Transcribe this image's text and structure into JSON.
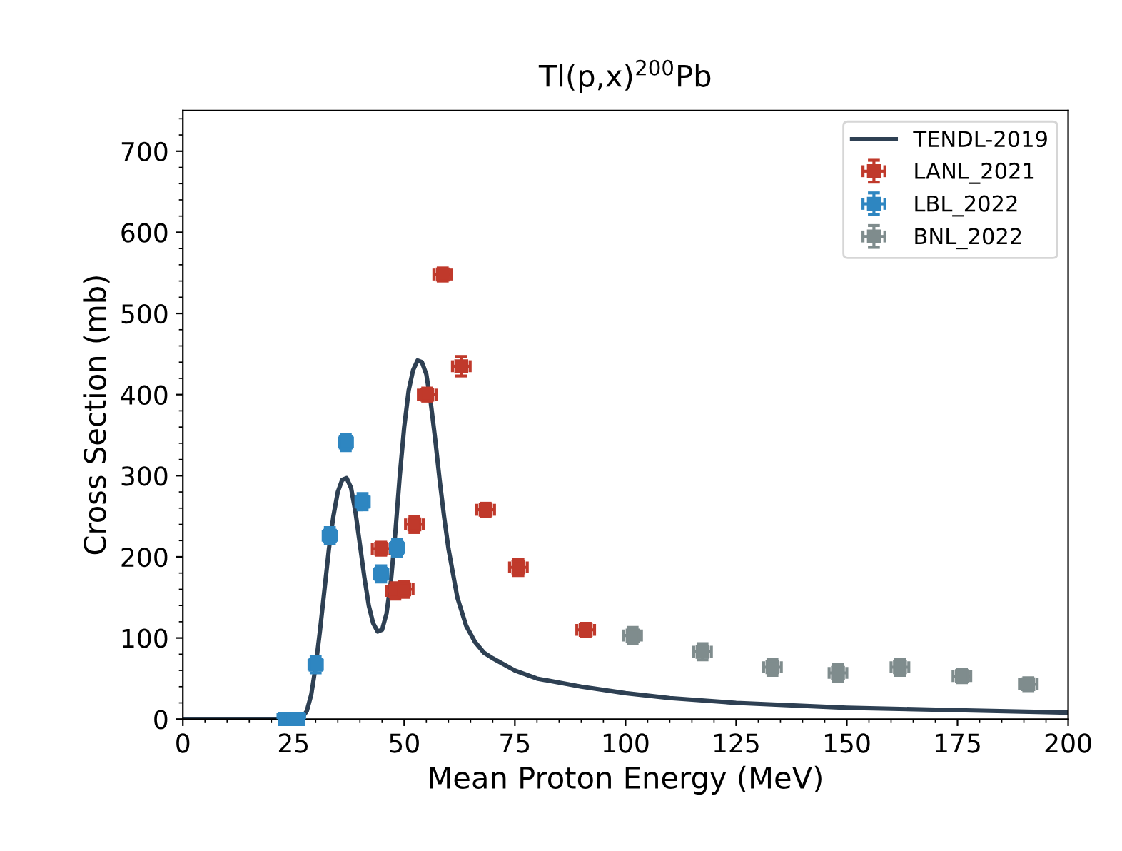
{
  "chart_data": {
    "type": "scatter",
    "title": "Tl(p,x)$^{200}$Pb",
    "xlabel": "Mean Proton Energy (MeV)",
    "ylabel": "Cross Section (mb)",
    "xlim": [
      0,
      200
    ],
    "xticks": [
      0,
      25,
      50,
      75,
      100,
      125,
      150,
      175,
      200
    ],
    "ylim": [
      0,
      750
    ],
    "yticks": [
      0,
      100,
      200,
      300,
      400,
      500,
      600,
      700
    ],
    "legend": "top right",
    "grid": false,
    "marker": "square",
    "series": [
      {
        "name": "TENDL-2019",
        "type": "line",
        "marker": "none",
        "color": "#2e4053",
        "line_style": "solid",
        "x": [
          0,
          25,
          27,
          28,
          29,
          30,
          31,
          32,
          33,
          34,
          35,
          36,
          37,
          38,
          39,
          40,
          41,
          42,
          43,
          44,
          45,
          46,
          47,
          48,
          49,
          50,
          51,
          52,
          53,
          54,
          55,
          56,
          57,
          58,
          59,
          60,
          62,
          64,
          66,
          68,
          70,
          75,
          80,
          90,
          100,
          110,
          125,
          150,
          175,
          200
        ],
        "values": [
          0,
          0,
          2,
          10,
          30,
          65,
          110,
          160,
          210,
          250,
          280,
          295,
          297,
          285,
          255,
          215,
          175,
          140,
          118,
          108,
          110,
          130,
          170,
          230,
          300,
          360,
          405,
          430,
          442,
          440,
          425,
          390,
          345,
          295,
          250,
          210,
          150,
          115,
          95,
          82,
          75,
          60,
          50,
          40,
          32,
          26,
          20,
          14,
          11,
          8
        ]
      },
      {
        "name": "LANL_2021",
        "color": "#c0392b",
        "x": [
          44.8,
          48,
          50,
          52.3,
          55.2,
          58.7,
          62.9,
          68.4,
          75.8,
          91
        ],
        "values": [
          210,
          158,
          160,
          240,
          400,
          548,
          435,
          258,
          187,
          110
        ],
        "errors": [
          8,
          10,
          10,
          10,
          8,
          8,
          12,
          8,
          10,
          8
        ],
        "xerrors": [
          2,
          2,
          2,
          2,
          2,
          2,
          2,
          2,
          2,
          2
        ]
      },
      {
        "name": "LBL_2022",
        "color": "#2e86c1",
        "x": [
          23,
          24.5,
          26,
          30,
          33.2,
          36.8,
          40.6,
          44.8,
          48.4
        ],
        "values": [
          0,
          0,
          0,
          67,
          226,
          341,
          268,
          179,
          211
        ],
        "errors": [
          null,
          null,
          null,
          10,
          10,
          10,
          10,
          10,
          10
        ],
        "xerrors": [
          1.5,
          1.5,
          1.5,
          1.5,
          1.5,
          1.5,
          1.5,
          1.5,
          1.5
        ]
      },
      {
        "name": "BNL_2022",
        "color": "#7f8c8d",
        "x": [
          101.6,
          117.4,
          133.2,
          148,
          162,
          176,
          191
        ],
        "values": [
          103,
          83,
          64,
          57,
          64,
          53,
          43
        ],
        "errors": [
          10,
          10,
          10,
          10,
          10,
          8,
          8
        ],
        "xerrors": [
          2,
          2,
          2,
          2,
          2,
          2,
          2
        ]
      }
    ]
  }
}
